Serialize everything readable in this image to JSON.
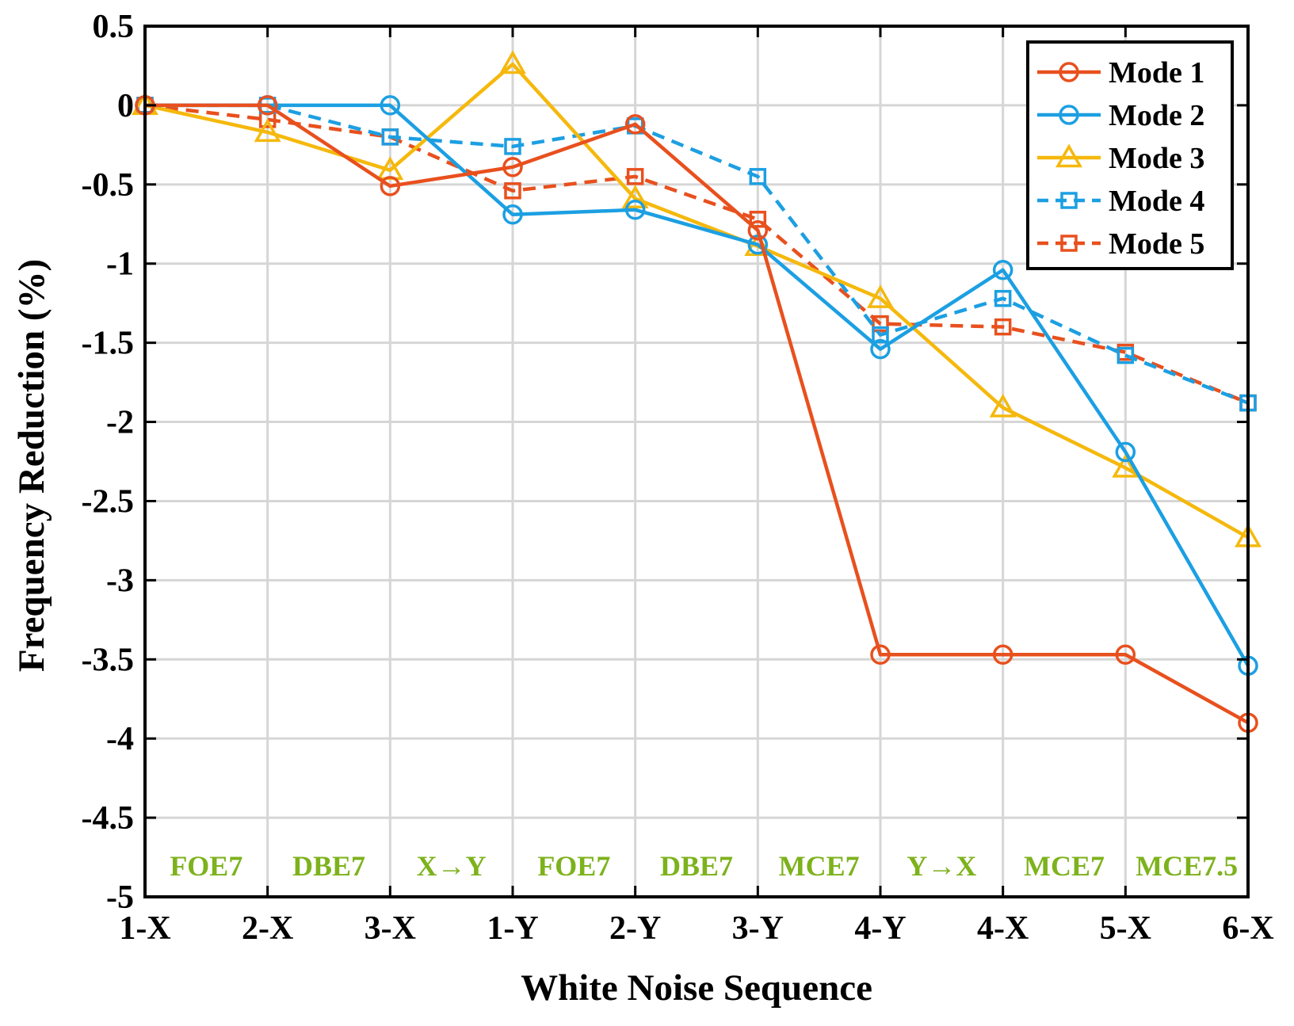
{
  "chart_data": {
    "type": "line",
    "title": "",
    "xlabel": "White Noise Sequence",
    "ylabel": "Frequency Reduction (%)",
    "categories": [
      "1-X",
      "2-X",
      "3-X",
      "1-Y",
      "2-Y",
      "3-Y",
      "4-Y",
      "4-X",
      "5-X",
      "6-X"
    ],
    "ylim": [
      -5,
      0.5
    ],
    "yticks": [
      0.5,
      0,
      -0.5,
      -1,
      -1.5,
      -2,
      -2.5,
      -3,
      -3.5,
      -4,
      -4.5,
      -5
    ],
    "ytick_labels": [
      "0.5",
      "0",
      "-0.5",
      "-1",
      "-1.5",
      "-2",
      "-2.5",
      "-3",
      "-3.5",
      "-4",
      "-4.5",
      "-5"
    ],
    "grid": true,
    "legend_position": "top-right",
    "series": [
      {
        "name": "Mode 1",
        "color": "#E8501E",
        "linestyle": "solid",
        "marker": "circle",
        "values": [
          0,
          0,
          -0.51,
          -0.39,
          -0.12,
          -0.79,
          -3.47,
          -3.47,
          -3.47,
          -3.9
        ]
      },
      {
        "name": "Mode 2",
        "color": "#1C9FE2",
        "linestyle": "solid",
        "marker": "circle",
        "values": [
          0,
          0,
          0,
          -0.69,
          -0.66,
          -0.88,
          -1.54,
          -1.04,
          -2.19,
          -3.54
        ]
      },
      {
        "name": "Mode 3",
        "color": "#F5B80C",
        "linestyle": "solid",
        "marker": "triangle",
        "values": [
          0,
          -0.17,
          -0.41,
          0.26,
          -0.59,
          -0.89,
          -1.22,
          -1.91,
          -2.29,
          -2.73
        ]
      },
      {
        "name": "Mode 4",
        "color": "#1C9FE2",
        "linestyle": "dashed",
        "marker": "square",
        "values": [
          0,
          0,
          -0.2,
          -0.26,
          -0.13,
          -0.45,
          -1.45,
          -1.22,
          -1.58,
          -1.88
        ]
      },
      {
        "name": "Mode 5",
        "color": "#E8501E",
        "linestyle": "dashed",
        "marker": "square",
        "values": [
          0,
          -0.09,
          -0.2,
          -0.54,
          -0.45,
          -0.72,
          -1.38,
          -1.4,
          -1.56,
          -1.88
        ]
      }
    ],
    "annotations": {
      "color": "#7DB21C",
      "y_value": -4.8,
      "items": [
        {
          "text": "FOE7",
          "from_index": 0,
          "to_index": 1
        },
        {
          "text": "DBE7",
          "from_index": 1,
          "to_index": 2
        },
        {
          "text": "X→Y",
          "from_index": 2,
          "to_index": 3
        },
        {
          "text": "FOE7",
          "from_index": 3,
          "to_index": 4
        },
        {
          "text": "DBE7",
          "from_index": 4,
          "to_index": 5
        },
        {
          "text": "MCE7",
          "from_index": 5,
          "to_index": 6
        },
        {
          "text": "Y→X",
          "from_index": 6,
          "to_index": 7
        },
        {
          "text": "MCE7",
          "from_index": 7,
          "to_index": 8
        },
        {
          "text": "MCE7.5",
          "from_index": 8,
          "to_index": 9
        }
      ]
    }
  }
}
